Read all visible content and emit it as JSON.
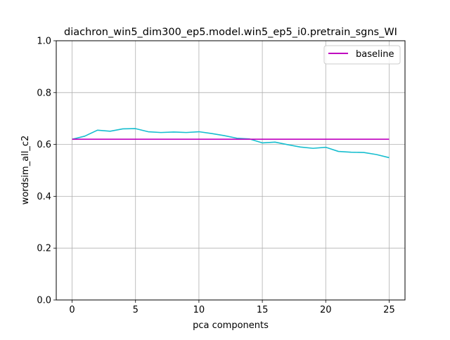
{
  "chart_data": {
    "type": "line",
    "title": "diachron_win5_dim300_ep5.model.win5_ep5_i0.pretrain_sgns_WI",
    "xlabel": "pca components",
    "ylabel": "wordsim_all_c2",
    "xlim": [
      -1.25,
      26.25
    ],
    "ylim": [
      0.0,
      1.0
    ],
    "xticks": [
      0,
      5,
      10,
      15,
      20,
      25
    ],
    "yticks": [
      0.0,
      0.2,
      0.4,
      0.6,
      0.8,
      1.0
    ],
    "xtick_labels": [
      "0",
      "5",
      "10",
      "15",
      "20",
      "25"
    ],
    "ytick_labels": [
      "0.0",
      "0.2",
      "0.4",
      "0.6",
      "0.8",
      "1.0"
    ],
    "grid": true,
    "legend_position": "top-right",
    "series": [
      {
        "color": "#17becf",
        "x": [
          0,
          1,
          2,
          3,
          4,
          5,
          6,
          7,
          8,
          9,
          10,
          11,
          12,
          13,
          14,
          15,
          16,
          17,
          18,
          19,
          20,
          21,
          22,
          23,
          24,
          25
        ],
        "y": [
          0.62,
          0.632,
          0.655,
          0.651,
          0.66,
          0.661,
          0.649,
          0.646,
          0.648,
          0.646,
          0.649,
          0.642,
          0.634,
          0.624,
          0.621,
          0.606,
          0.609,
          0.599,
          0.59,
          0.585,
          0.589,
          0.573,
          0.57,
          0.569,
          0.561,
          0.549
        ]
      },
      {
        "name": "baseline",
        "color": "#bf00bf",
        "x": [
          0,
          25
        ],
        "y": [
          0.62,
          0.62
        ]
      }
    ]
  }
}
